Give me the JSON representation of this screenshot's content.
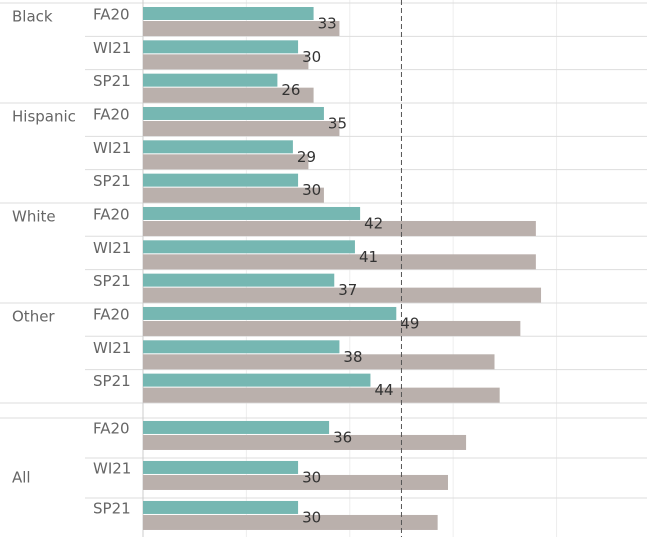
{
  "chart_data": {
    "type": "bar",
    "groups": [
      "Black",
      "Hispanic",
      "White",
      "Other",
      "All"
    ],
    "categories": [
      "FA20",
      "WI21",
      "SP21",
      "FA20",
      "WI21",
      "SP21",
      "FA20",
      "WI21",
      "SP21",
      "FA20",
      "WI21",
      "SP21",
      "FA20",
      "WI21",
      "SP21"
    ],
    "series": [
      {
        "color": "#76b7b2",
        "values": [
          33,
          30,
          26,
          35,
          29,
          30,
          42,
          41,
          37,
          49,
          38,
          44,
          36,
          30,
          30
        ]
      },
      {
        "color": "#bab0ac",
        "values": [
          38,
          32,
          33,
          38,
          32,
          35,
          76,
          76,
          77,
          73,
          68,
          69,
          62.5,
          59,
          57
        ]
      }
    ],
    "xlim": [
      0,
      97.5
    ],
    "xticks": [
      0,
      20,
      40,
      60,
      80
    ],
    "grid": true,
    "reference_line": 50
  }
}
